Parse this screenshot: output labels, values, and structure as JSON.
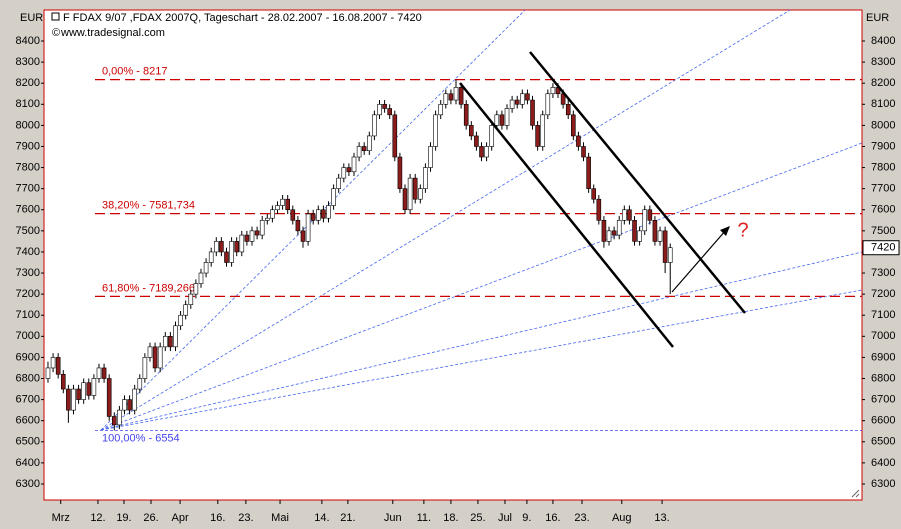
{
  "chart_data": {
    "type": "candlestick",
    "title": "F FDAX 9/07 ,FDAX 2007Q, Tageschart - 28.02.2007 - 16.08.2007 - 7420",
    "subtitle": "www.tradesignal.com",
    "y_unit": "EUR",
    "up_color": "#ffffff",
    "down_color": "#8b1c1c",
    "x": [
      0,
      1,
      2,
      3,
      4,
      5,
      6,
      7,
      8,
      9,
      10,
      11,
      12,
      13,
      14,
      15,
      16,
      17,
      18,
      19,
      20,
      21,
      22,
      23,
      24,
      25,
      26,
      27,
      28,
      29,
      30,
      31,
      32,
      33,
      34,
      35,
      36,
      37,
      38,
      39,
      40,
      41,
      42,
      43,
      44,
      45,
      46,
      47,
      48,
      49,
      50,
      51,
      52,
      53,
      54,
      55,
      56,
      57,
      58,
      59,
      60,
      61,
      62,
      63,
      64,
      65,
      66,
      67,
      68,
      69,
      70,
      71,
      72,
      73,
      74,
      75,
      76,
      77,
      78,
      79,
      80,
      81,
      82,
      83,
      84,
      85,
      86,
      87,
      88,
      89,
      90,
      91,
      92,
      93,
      94,
      95,
      96,
      97,
      98,
      99,
      100,
      101,
      102,
      103,
      104,
      105,
      106,
      107,
      108,
      109,
      110,
      111,
      112,
      113,
      114,
      115,
      116,
      117,
      118,
      119,
      120,
      121,
      122
    ],
    "open": [
      6800,
      6850,
      6900,
      6820,
      6750,
      6650,
      6750,
      6700,
      6780,
      6720,
      6800,
      6850,
      6800,
      6620,
      6580,
      6650,
      6700,
      6650,
      6750,
      6800,
      6900,
      6950,
      6850,
      6950,
      7000,
      6950,
      7050,
      7100,
      7150,
      7200,
      7250,
      7300,
      7350,
      7400,
      7450,
      7400,
      7350,
      7450,
      7400,
      7480,
      7450,
      7500,
      7480,
      7550,
      7560,
      7600,
      7620,
      7650,
      7600,
      7550,
      7500,
      7450,
      7580,
      7550,
      7600,
      7560,
      7620,
      7700,
      7750,
      7800,
      7780,
      7850,
      7900,
      7880,
      7950,
      8050,
      8100,
      8080,
      8050,
      7850,
      7700,
      7600,
      7750,
      7650,
      7700,
      7800,
      7900,
      8050,
      8100,
      8150,
      8120,
      8180,
      8100,
      8000,
      7950,
      7900,
      7850,
      7900,
      8000,
      8050,
      8000,
      8080,
      8120,
      8100,
      8150,
      8120,
      8000,
      7900,
      8050,
      8150,
      8180,
      8150,
      8100,
      8050,
      7950,
      7900,
      7850,
      7700,
      7650,
      7550,
      7450,
      7500,
      7480,
      7550,
      7600,
      7550,
      7450,
      7500,
      7600,
      7550,
      7450,
      7500,
      7350
    ],
    "high": [
      6880,
      6920,
      6920,
      6840,
      6770,
      6770,
      6770,
      6800,
      6800,
      6820,
      6870,
      6870,
      6820,
      6640,
      6670,
      6720,
      6720,
      6770,
      6820,
      6920,
      6970,
      6970,
      6970,
      7020,
      7020,
      7070,
      7120,
      7170,
      7220,
      7270,
      7320,
      7370,
      7420,
      7470,
      7470,
      7420,
      7470,
      7470,
      7500,
      7500,
      7520,
      7520,
      7570,
      7580,
      7620,
      7640,
      7670,
      7670,
      7620,
      7570,
      7520,
      7600,
      7600,
      7620,
      7620,
      7640,
      7720,
      7770,
      7820,
      7820,
      7870,
      7920,
      7920,
      7970,
      8070,
      8120,
      8120,
      8100,
      8070,
      7870,
      7720,
      7770,
      7770,
      7720,
      7820,
      7920,
      8070,
      8120,
      8170,
      8170,
      8217,
      8200,
      8120,
      8020,
      7970,
      7920,
      7920,
      8020,
      8070,
      8070,
      8100,
      8140,
      8140,
      8170,
      8170,
      8140,
      8020,
      8070,
      8170,
      8200,
      8200,
      8170,
      8120,
      8070,
      7970,
      7920,
      7870,
      7720,
      7670,
      7570,
      7520,
      7520,
      7570,
      7620,
      7620,
      7570,
      7520,
      7620,
      7620,
      7570,
      7520,
      7520,
      7440
    ],
    "low": [
      6780,
      6830,
      6800,
      6730,
      6590,
      6630,
      6680,
      6680,
      6700,
      6700,
      6780,
      6780,
      6600,
      6554,
      6560,
      6630,
      6630,
      6630,
      6730,
      6780,
      6880,
      6830,
      6830,
      6930,
      6930,
      6930,
      7030,
      7080,
      7130,
      7180,
      7230,
      7280,
      7330,
      7380,
      7380,
      7330,
      7330,
      7380,
      7380,
      7430,
      7430,
      7460,
      7460,
      7530,
      7540,
      7580,
      7600,
      7580,
      7530,
      7480,
      7420,
      7430,
      7530,
      7530,
      7540,
      7540,
      7600,
      7680,
      7730,
      7760,
      7760,
      7830,
      7860,
      7860,
      7930,
      8030,
      8060,
      8030,
      7830,
      7680,
      7580,
      7580,
      7630,
      7630,
      7680,
      7780,
      7880,
      8030,
      8080,
      8100,
      8100,
      8080,
      7980,
      7930,
      7880,
      7830,
      7830,
      7880,
      7980,
      7980,
      7980,
      8060,
      8080,
      8080,
      8100,
      7980,
      7880,
      7880,
      8030,
      8130,
      8130,
      8080,
      8030,
      7930,
      7880,
      7830,
      7680,
      7630,
      7530,
      7420,
      7430,
      7460,
      7460,
      7530,
      7530,
      7430,
      7430,
      7480,
      7530,
      7430,
      7430,
      7300,
      7200
    ],
    "close": [
      6850,
      6900,
      6820,
      6750,
      6650,
      6750,
      6700,
      6780,
      6720,
      6800,
      6850,
      6800,
      6620,
      6580,
      6650,
      6700,
      6650,
      6750,
      6800,
      6900,
      6950,
      6850,
      6950,
      7000,
      6950,
      7050,
      7100,
      7150,
      7200,
      7250,
      7300,
      7350,
      7400,
      7450,
      7400,
      7350,
      7450,
      7400,
      7480,
      7450,
      7500,
      7480,
      7550,
      7560,
      7600,
      7620,
      7650,
      7600,
      7550,
      7500,
      7450,
      7580,
      7550,
      7600,
      7560,
      7620,
      7700,
      7750,
      7800,
      7780,
      7850,
      7900,
      7880,
      7950,
      8050,
      8100,
      8080,
      8050,
      7850,
      7700,
      7600,
      7750,
      7650,
      7700,
      7800,
      7900,
      8050,
      8100,
      8150,
      8120,
      8180,
      8100,
      8000,
      7950,
      7900,
      7850,
      7900,
      8000,
      8050,
      8000,
      8080,
      8120,
      8100,
      8150,
      8120,
      8000,
      7900,
      8050,
      8150,
      8180,
      8150,
      8100,
      8050,
      7950,
      7900,
      7850,
      7700,
      7650,
      7550,
      7450,
      7500,
      7480,
      7550,
      7600,
      7550,
      7450,
      7500,
      7600,
      7550,
      7450,
      7500,
      7350,
      7420
    ],
    "xlim": [
      -0.78,
      159.6
    ],
    "xticks": [
      {
        "value": 2.5,
        "label": "Mrz"
      },
      {
        "value": 9.8,
        "label": "12."
      },
      {
        "value": 14.9,
        "label": "19."
      },
      {
        "value": 20.2,
        "label": "26."
      },
      {
        "value": 25.9,
        "label": "Apr"
      },
      {
        "value": 33.3,
        "label": "16."
      },
      {
        "value": 38.8,
        "label": "23."
      },
      {
        "value": 45.5,
        "label": "Mai"
      },
      {
        "value": 53.7,
        "label": "14."
      },
      {
        "value": 58.8,
        "label": "21."
      },
      {
        "value": 67.6,
        "label": "Jun"
      },
      {
        "value": 73.7,
        "label": "11."
      },
      {
        "value": 79.0,
        "label": "18."
      },
      {
        "value": 84.3,
        "label": "25."
      },
      {
        "value": 89.6,
        "label": "Jul"
      },
      {
        "value": 93.9,
        "label": "9."
      },
      {
        "value": 99.0,
        "label": "16."
      },
      {
        "value": 104.7,
        "label": "23."
      },
      {
        "value": 112.5,
        "label": "Aug"
      },
      {
        "value": 120.4,
        "label": "13."
      }
    ],
    "ylim": [
      6224,
      8547
    ],
    "yticks": [
      6300,
      6400,
      6500,
      6600,
      6700,
      6800,
      6900,
      7000,
      7100,
      7200,
      7300,
      7400,
      7500,
      7600,
      7700,
      7800,
      7900,
      8000,
      8100,
      8200,
      8300,
      8400
    ],
    "last_price": 7420,
    "fib_levels": [
      {
        "label": "0,00% - 8217",
        "value": 8217,
        "color": "#cc0000"
      },
      {
        "label": "38,20% - 7581,734",
        "value": 7581.734,
        "color": "#cc0000"
      },
      {
        "label": "61,80% - 7189,266",
        "value": 7189.266,
        "color": "#cc0000"
      },
      {
        "label": "100,00% - 6554",
        "value": 6554,
        "color": "#4444ee"
      }
    ],
    "annotation": "?"
  }
}
